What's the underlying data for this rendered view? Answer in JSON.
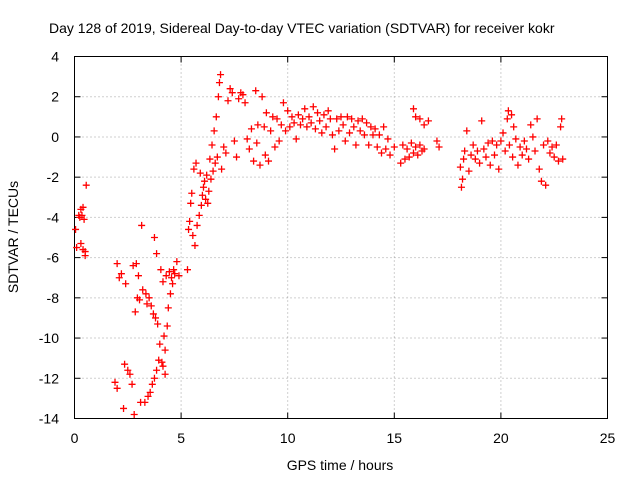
{
  "chart_data": {
    "type": "scatter",
    "title": "Day 128 of 2019, Sidereal Day-to-day VTEC variation (SDTVAR) for receiver kokr",
    "xlabel": "GPS time / hours",
    "ylabel": "SDTVAR / TECUs",
    "xlim": [
      0,
      25
    ],
    "ylim": [
      -14,
      4
    ],
    "xticks": [
      0,
      5,
      10,
      15,
      20,
      25
    ],
    "yticks": [
      -14,
      -12,
      -10,
      -8,
      -6,
      -4,
      -2,
      0,
      2,
      4
    ],
    "grid": true,
    "marker": "+",
    "color": "#ff0000",
    "series": [
      {
        "name": "SDTVAR",
        "points": [
          [
            0.05,
            -4.6
          ],
          [
            0.1,
            -5.5
          ],
          [
            0.2,
            -3.9
          ],
          [
            0.25,
            -4.0
          ],
          [
            0.3,
            -3.6
          ],
          [
            0.35,
            -3.9
          ],
          [
            0.4,
            -3.5
          ],
          [
            0.45,
            -4.1
          ],
          [
            0.5,
            -5.7
          ],
          [
            0.55,
            -2.4
          ],
          [
            0.3,
            -5.3
          ],
          [
            0.4,
            -5.6
          ],
          [
            0.5,
            -5.9
          ],
          [
            1.9,
            -12.2
          ],
          [
            2.0,
            -12.5
          ],
          [
            2.0,
            -6.3
          ],
          [
            2.1,
            -7.0
          ],
          [
            2.2,
            -6.8
          ],
          [
            2.3,
            -13.5
          ],
          [
            2.35,
            -11.3
          ],
          [
            2.4,
            -7.3
          ],
          [
            2.5,
            -11.6
          ],
          [
            2.6,
            -11.8
          ],
          [
            2.7,
            -12.3
          ],
          [
            2.75,
            -6.4
          ],
          [
            2.8,
            -13.8
          ],
          [
            2.85,
            -8.7
          ],
          [
            2.9,
            -6.3
          ],
          [
            2.95,
            -8.0
          ],
          [
            3.0,
            -6.9
          ],
          [
            3.05,
            -8.1
          ],
          [
            3.1,
            -13.2
          ],
          [
            3.15,
            -4.4
          ],
          [
            3.2,
            -7.6
          ],
          [
            3.3,
            -13.2
          ],
          [
            3.35,
            -7.8
          ],
          [
            3.4,
            -8.3
          ],
          [
            3.45,
            -12.9
          ],
          [
            3.5,
            -8.0
          ],
          [
            3.55,
            -12.7
          ],
          [
            3.6,
            -8.4
          ],
          [
            3.65,
            -12.3
          ],
          [
            3.7,
            -8.8
          ],
          [
            3.75,
            -12.0
          ],
          [
            3.8,
            -9.0
          ],
          [
            3.85,
            -11.6
          ],
          [
            3.9,
            -9.3
          ],
          [
            3.95,
            -11.1
          ],
          [
            3.75,
            -5.0
          ],
          [
            3.85,
            -5.8
          ],
          [
            4.0,
            -10.3
          ],
          [
            4.05,
            -6.6
          ],
          [
            4.1,
            -11.2
          ],
          [
            4.15,
            -7.2
          ],
          [
            4.2,
            -9.9
          ],
          [
            4.25,
            -10.6
          ],
          [
            4.3,
            -6.9
          ],
          [
            4.35,
            -9.4
          ],
          [
            4.4,
            -8.5
          ],
          [
            4.45,
            -6.7
          ],
          [
            4.5,
            -7.8
          ],
          [
            4.55,
            -7.0
          ],
          [
            4.6,
            -7.3
          ],
          [
            4.65,
            -6.6
          ],
          [
            4.7,
            -6.8
          ],
          [
            4.8,
            -6.2
          ],
          [
            4.9,
            -6.9
          ],
          [
            4.15,
            -11.4
          ],
          [
            4.25,
            -11.8
          ],
          [
            5.3,
            -6.6
          ],
          [
            5.35,
            -4.6
          ],
          [
            5.4,
            -4.2
          ],
          [
            5.45,
            -3.3
          ],
          [
            5.5,
            -2.8
          ],
          [
            5.55,
            -4.9
          ],
          [
            5.6,
            -1.6
          ],
          [
            5.65,
            -5.4
          ],
          [
            5.7,
            -1.3
          ],
          [
            5.75,
            -4.4
          ],
          [
            5.85,
            -3.9
          ],
          [
            5.9,
            -1.8
          ],
          [
            5.95,
            -3.4
          ],
          [
            6.0,
            -2.9
          ],
          [
            6.05,
            -2.5
          ],
          [
            6.1,
            -2.2
          ],
          [
            6.15,
            -3.1
          ],
          [
            6.2,
            -1.9
          ],
          [
            6.25,
            -3.3
          ],
          [
            6.3,
            -2.7
          ],
          [
            6.35,
            -1.1
          ],
          [
            6.4,
            -2.1
          ],
          [
            6.45,
            -0.4
          ],
          [
            6.5,
            -1.7
          ],
          [
            6.55,
            0.3
          ],
          [
            6.6,
            -1.3
          ],
          [
            6.65,
            1.0
          ],
          [
            6.7,
            -1.0
          ],
          [
            6.75,
            2.0
          ],
          [
            6.8,
            2.7
          ],
          [
            6.85,
            3.1
          ],
          [
            6.9,
            -1.6
          ],
          [
            7.0,
            -0.5
          ],
          [
            7.1,
            -0.8
          ],
          [
            7.2,
            1.8
          ],
          [
            7.3,
            2.4
          ],
          [
            7.4,
            2.2
          ],
          [
            7.5,
            -0.2
          ],
          [
            7.6,
            -1.0
          ],
          [
            7.7,
            1.9
          ],
          [
            7.8,
            2.2
          ],
          [
            7.9,
            2.1
          ],
          [
            8.0,
            1.7
          ],
          [
            8.1,
            -0.1
          ],
          [
            8.2,
            -0.6
          ],
          [
            8.3,
            0.4
          ],
          [
            8.4,
            -1.2
          ],
          [
            8.5,
            2.3
          ],
          [
            8.55,
            -0.3
          ],
          [
            8.6,
            0.6
          ],
          [
            8.7,
            -1.4
          ],
          [
            8.8,
            2.0
          ],
          [
            8.9,
            0.5
          ],
          [
            8.95,
            -0.9
          ],
          [
            9.0,
            1.2
          ],
          [
            9.1,
            -1.2
          ],
          [
            9.2,
            0.3
          ],
          [
            9.3,
            1.0
          ],
          [
            9.4,
            -0.5
          ],
          [
            9.5,
            0.9
          ],
          [
            9.6,
            -0.2
          ],
          [
            9.7,
            0.6
          ],
          [
            9.8,
            1.7
          ],
          [
            9.9,
            0.3
          ],
          [
            10.0,
            1.3
          ],
          [
            10.1,
            0.5
          ],
          [
            10.2,
            1.0
          ],
          [
            10.3,
            0.7
          ],
          [
            10.4,
            -0.1
          ],
          [
            10.5,
            1.1
          ],
          [
            10.6,
            0.6
          ],
          [
            10.7,
            0.9
          ],
          [
            10.8,
            1.4
          ],
          [
            10.9,
            0.5
          ],
          [
            11.0,
            1.0
          ],
          [
            11.1,
            0.7
          ],
          [
            11.2,
            1.5
          ],
          [
            11.3,
            0.4
          ],
          [
            11.4,
            1.2
          ],
          [
            11.5,
            0.8
          ],
          [
            11.6,
            0.2
          ],
          [
            11.7,
            1.1
          ],
          [
            11.8,
            0.5
          ],
          [
            11.9,
            1.3
          ],
          [
            12.0,
            0.9
          ],
          [
            12.1,
            0.1
          ],
          [
            12.2,
            -0.6
          ],
          [
            12.3,
            0.9
          ],
          [
            12.4,
            0.3
          ],
          [
            12.5,
            1.0
          ],
          [
            12.6,
            0.6
          ],
          [
            12.7,
            -0.2
          ],
          [
            12.8,
            1.0
          ],
          [
            12.9,
            0.2
          ],
          [
            13.0,
            0.9
          ],
          [
            13.1,
            0.5
          ],
          [
            13.2,
            -0.4
          ],
          [
            13.3,
            0.8
          ],
          [
            13.4,
            0.3
          ],
          [
            13.5,
            0.9
          ],
          [
            13.6,
            0.1
          ],
          [
            13.7,
            0.7
          ],
          [
            13.8,
            -0.4
          ],
          [
            13.9,
            0.5
          ],
          [
            14.0,
            0.1
          ],
          [
            14.1,
            0.4
          ],
          [
            14.2,
            -0.5
          ],
          [
            14.3,
            0.1
          ],
          [
            14.4,
            -0.8
          ],
          [
            14.5,
            0.5
          ],
          [
            14.6,
            -0.6
          ],
          [
            14.7,
            -0.1
          ],
          [
            14.8,
            -0.9
          ],
          [
            15.0,
            -0.5
          ],
          [
            15.3,
            -1.3
          ],
          [
            15.4,
            -0.4
          ],
          [
            15.5,
            -1.1
          ],
          [
            15.6,
            -0.6
          ],
          [
            15.7,
            -1.0
          ],
          [
            15.8,
            -0.3
          ],
          [
            15.9,
            -0.8
          ],
          [
            16.0,
            -0.5
          ],
          [
            16.1,
            -0.9
          ],
          [
            16.2,
            -0.4
          ],
          [
            16.3,
            -0.7
          ],
          [
            16.4,
            -0.6
          ],
          [
            15.9,
            1.4
          ],
          [
            16.0,
            1.0
          ],
          [
            16.2,
            0.9
          ],
          [
            16.4,
            0.6
          ],
          [
            16.6,
            0.8
          ],
          [
            17.0,
            -0.2
          ],
          [
            17.1,
            -0.5
          ],
          [
            18.1,
            -1.5
          ],
          [
            18.15,
            -2.5
          ],
          [
            18.2,
            -2.1
          ],
          [
            18.25,
            -1.1
          ],
          [
            18.3,
            -0.7
          ],
          [
            18.4,
            0.3
          ],
          [
            18.5,
            -1.7
          ],
          [
            18.6,
            -0.9
          ],
          [
            18.7,
            -0.4
          ],
          [
            18.8,
            -1.1
          ],
          [
            18.9,
            -0.7
          ],
          [
            19.0,
            -1.3
          ],
          [
            19.1,
            0.8
          ],
          [
            19.2,
            -0.6
          ],
          [
            19.3,
            -1.0
          ],
          [
            19.4,
            -0.3
          ],
          [
            19.5,
            -1.4
          ],
          [
            19.6,
            -0.2
          ],
          [
            19.7,
            -0.9
          ],
          [
            19.8,
            -0.4
          ],
          [
            19.9,
            -1.6
          ],
          [
            20.0,
            -0.2
          ],
          [
            20.1,
            0.2
          ],
          [
            20.2,
            -0.7
          ],
          [
            20.3,
            0.9
          ],
          [
            20.35,
            1.3
          ],
          [
            20.4,
            -0.4
          ],
          [
            20.5,
            1.1
          ],
          [
            20.55,
            -1.0
          ],
          [
            20.6,
            0.5
          ],
          [
            20.7,
            -0.1
          ],
          [
            20.8,
            -1.4
          ],
          [
            20.9,
            -0.5
          ],
          [
            21.0,
            -0.9
          ],
          [
            21.1,
            -0.2
          ],
          [
            21.2,
            -0.6
          ],
          [
            21.3,
            -1.1
          ],
          [
            21.4,
            0.6
          ],
          [
            21.5,
            0.0
          ],
          [
            21.6,
            -0.7
          ],
          [
            21.7,
            0.9
          ],
          [
            21.8,
            -1.6
          ],
          [
            21.9,
            -2.2
          ],
          [
            22.0,
            -0.4
          ],
          [
            22.1,
            -2.4
          ],
          [
            22.2,
            -0.2
          ],
          [
            22.3,
            -0.8
          ],
          [
            22.4,
            -0.5
          ],
          [
            22.5,
            -1.0
          ],
          [
            22.6,
            -0.4
          ],
          [
            22.7,
            -1.2
          ],
          [
            22.8,
            0.5
          ],
          [
            22.85,
            0.9
          ],
          [
            22.9,
            -1.1
          ]
        ]
      }
    ]
  }
}
